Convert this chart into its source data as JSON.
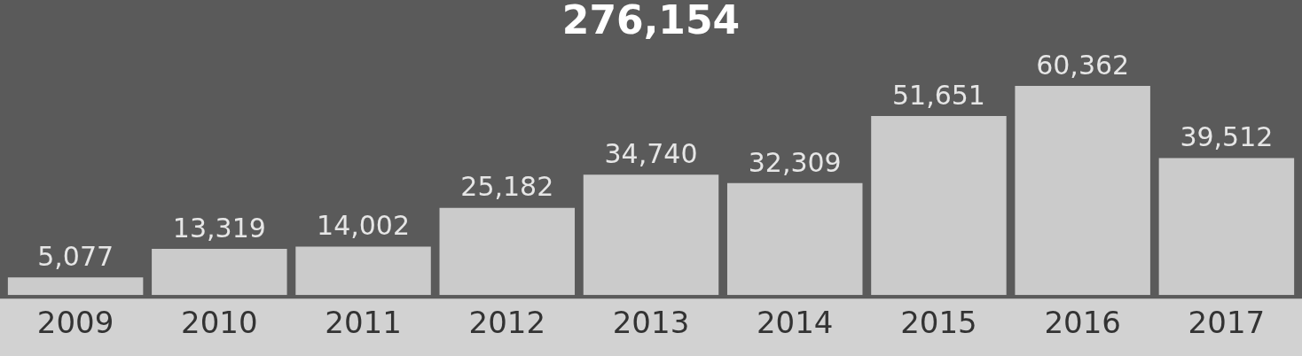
{
  "chart_data": {
    "type": "bar",
    "title": "276,154",
    "categories": [
      "2009",
      "2010",
      "2011",
      "2012",
      "2013",
      "2014",
      "2015",
      "2016",
      "2017"
    ],
    "values": [
      5077,
      13319,
      14002,
      25182,
      34740,
      32309,
      51651,
      60362,
      39512
    ],
    "value_labels": [
      "5,077",
      "13,319",
      "14,002",
      "25,182",
      "34,740",
      "32,309",
      "51,651",
      "60,362",
      "39,512"
    ],
    "color": "#cbcbcb",
    "grid": false,
    "legend": false
  }
}
